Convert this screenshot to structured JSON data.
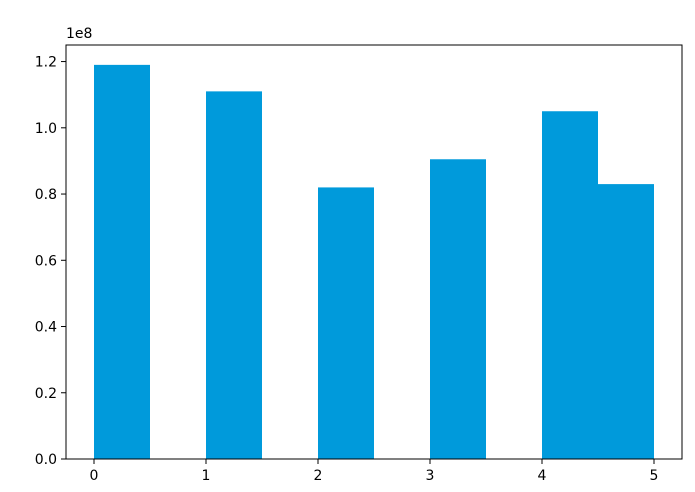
{
  "chart_data": {
    "type": "bar",
    "bars": [
      {
        "x_start": 0.0,
        "x_end": 0.5,
        "value": 119000000
      },
      {
        "x_start": 1.0,
        "x_end": 1.5,
        "value": 111000000
      },
      {
        "x_start": 2.0,
        "x_end": 2.5,
        "value": 82000000
      },
      {
        "x_start": 3.0,
        "x_end": 3.5,
        "value": 90500000
      },
      {
        "x_start": 4.0,
        "x_end": 4.5,
        "value": 105000000
      },
      {
        "x_start": 4.5,
        "x_end": 5.0,
        "value": 83000000
      }
    ],
    "xlim": [
      -0.25,
      5.25
    ],
    "ylim": [
      0,
      125000000
    ],
    "x_ticks": [
      0,
      1,
      2,
      3,
      4,
      5
    ],
    "x_tick_labels": [
      "0",
      "1",
      "2",
      "3",
      "4",
      "5"
    ],
    "y_ticks": [
      0,
      20000000,
      40000000,
      60000000,
      80000000,
      100000000,
      120000000
    ],
    "y_tick_labels": [
      "0.0",
      "0.2",
      "0.4",
      "0.6",
      "0.8",
      "1.0",
      "1.2"
    ],
    "y_offset_label": "1e8",
    "bar_color": "#009adb",
    "grid": false,
    "title": "",
    "xlabel": "",
    "ylabel": ""
  }
}
